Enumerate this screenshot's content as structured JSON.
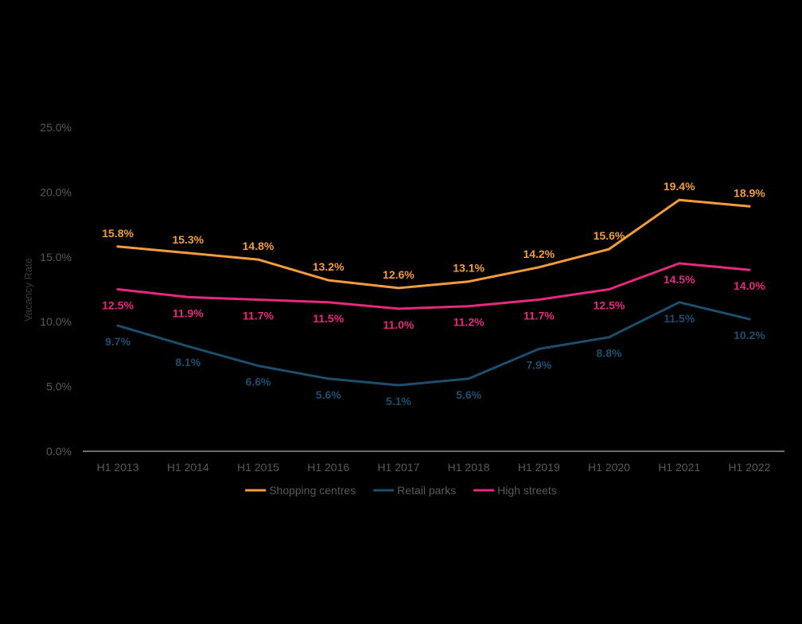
{
  "chart_data": {
    "type": "line",
    "title": "",
    "xlabel": "",
    "ylabel": "Vacancy Rate",
    "ylim": [
      0,
      25
    ],
    "y_ticks": [
      "0.0%",
      "5.0%",
      "10.0%",
      "15.0%",
      "20.0%",
      "25.0%"
    ],
    "grid": false,
    "legend_position": "bottom",
    "categories": [
      "H1 2013",
      "H1 2014",
      "H1 2015",
      "H1 2016",
      "H1 2017",
      "H1 2018",
      "H1 2019",
      "H1 2020",
      "H1 2021",
      "H1 2022"
    ],
    "series": [
      {
        "name": "Shopping centres",
        "color": "#F39C3C",
        "values": [
          15.8,
          15.3,
          14.8,
          13.2,
          12.6,
          13.1,
          14.2,
          15.6,
          19.4,
          18.9
        ],
        "labels": [
          "15.8%",
          "15.3%",
          "14.8%",
          "13.2%",
          "12.6%",
          "13.1%",
          "14.2%",
          "15.6%",
          "19.4%",
          "18.9%"
        ]
      },
      {
        "name": "Retail parks",
        "color": "#1E4E6E",
        "values": [
          9.7,
          8.1,
          6.6,
          5.6,
          5.1,
          5.6,
          7.9,
          8.8,
          11.5,
          10.2
        ],
        "labels": [
          "9.7%",
          "8.1%",
          "6.6%",
          "5.6%",
          "5.1%",
          "5.6%",
          "7.9%",
          "8.8%",
          "11.5%",
          "10.2%"
        ]
      },
      {
        "name": "High streets",
        "color": "#E6287F",
        "values": [
          12.5,
          11.9,
          11.7,
          11.5,
          11.0,
          11.2,
          11.7,
          12.5,
          14.5,
          14.0
        ],
        "labels": [
          "12.5%",
          "11.9%",
          "11.7%",
          "11.5%",
          "11.0%",
          "11.2%",
          "11.7%",
          "12.5%",
          "14.5%",
          "14.0%"
        ]
      }
    ]
  }
}
